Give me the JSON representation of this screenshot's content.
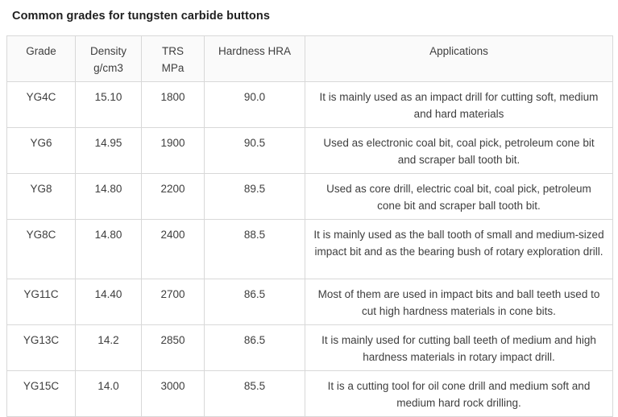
{
  "title": "Common grades for tungsten carbide buttons",
  "table": {
    "headers": {
      "grade": "Grade",
      "density": "Density\ng/cm3",
      "trs": "TRS\nMPa",
      "hardness": "Hardness HRA",
      "applications": "Applications"
    },
    "rows": [
      {
        "grade": "YG4C",
        "density": "15.10",
        "trs": "1800",
        "hardness": "90.0",
        "applications": "It is mainly used as an impact drill for cutting soft, medium and hard materials"
      },
      {
        "grade": "YG6",
        "density": "14.95",
        "trs": "1900",
        "hardness": "90.5",
        "applications": "Used as electronic coal bit, coal pick, petroleum cone bit and scraper ball tooth bit."
      },
      {
        "grade": "YG8",
        "density": "14.80",
        "trs": "2200",
        "hardness": "89.5",
        "applications": "Used as core drill, electric coal bit, coal pick, petroleum cone bit and scraper ball tooth bit."
      },
      {
        "grade": "YG8C",
        "density": "14.80",
        "trs": "2400",
        "hardness": "88.5",
        "applications": "It is mainly used as the ball tooth of small and medium-sized impact bit and as the bearing bush of rotary exploration drill."
      },
      {
        "grade": "YG11C",
        "density": "14.40",
        "trs": "2700",
        "hardness": "86.5",
        "applications": "Most of them are used in impact bits and ball teeth used to cut high hardness materials in cone bits."
      },
      {
        "grade": "YG13C",
        "density": "14.2",
        "trs": "2850",
        "hardness": "86.5",
        "applications": "It is mainly used for cutting ball teeth of medium and high hardness materials in rotary impact drill."
      },
      {
        "grade": "YG15C",
        "density": "14.0",
        "trs": "3000",
        "hardness": "85.5",
        "applications": "It is a cutting tool for oil cone drill and medium soft and medium hard rock drilling."
      }
    ]
  },
  "colors": {
    "header_bg": "#fafafa",
    "border": "#d8d8d8",
    "text": "#3e3e3e",
    "title_text": "#1f1f1f",
    "page_bg": "#ffffff"
  }
}
